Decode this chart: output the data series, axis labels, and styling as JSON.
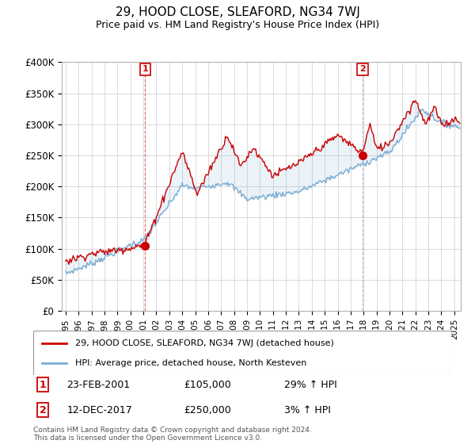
{
  "title": "29, HOOD CLOSE, SLEAFORD, NG34 7WJ",
  "subtitle": "Price paid vs. HM Land Registry's House Price Index (HPI)",
  "ylabel_ticks": [
    "£0",
    "£50K",
    "£100K",
    "£150K",
    "£200K",
    "£250K",
    "£300K",
    "£350K",
    "£400K"
  ],
  "ylim": [
    0,
    400000
  ],
  "xlim_start": 1994.7,
  "xlim_end": 2025.5,
  "sale1_date": 2001.14,
  "sale1_price": 105000,
  "sale1_label": "1",
  "sale2_date": 2017.92,
  "sale2_price": 250000,
  "sale2_label": "2",
  "legend_line1": "29, HOOD CLOSE, SLEAFORD, NG34 7WJ (detached house)",
  "legend_line2": "HPI: Average price, detached house, North Kesteven",
  "ann1_label": "1",
  "ann1_date": "23-FEB-2001",
  "ann1_price": "£105,000",
  "ann1_pct": "29% ↑ HPI",
  "ann2_label": "2",
  "ann2_date": "12-DEC-2017",
  "ann2_price": "£250,000",
  "ann2_pct": "3% ↑ HPI",
  "footer": "Contains HM Land Registry data © Crown copyright and database right 2024.\nThis data is licensed under the Open Government Licence v3.0.",
  "red_color": "#cc0000",
  "blue_color": "#7aadd4",
  "fill_color": "#ddeeff",
  "background_color": "#ffffff",
  "grid_color": "#cccccc"
}
